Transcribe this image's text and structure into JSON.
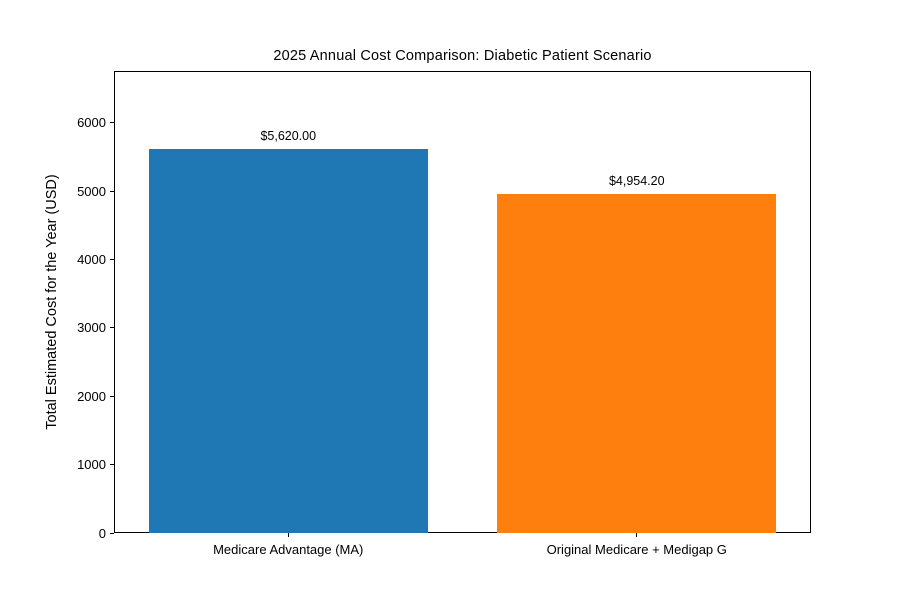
{
  "chart_data": {
    "type": "bar",
    "title": "2025 Annual Cost Comparison: Diabetic Patient Scenario",
    "categories": [
      "Medicare Advantage (MA)",
      "Original Medicare + Medigap G"
    ],
    "values": [
      5620.0,
      4954.2
    ],
    "value_labels": [
      "$5,620.00",
      "$4,954.20"
    ],
    "bar_colors": [
      "#1f77b4",
      "#ff7f0e"
    ],
    "xlabel": "",
    "ylabel": "Total Estimated Cost for the Year (USD)",
    "ylim": [
      0,
      6760
    ],
    "yticks": [
      0,
      1000,
      2000,
      3000,
      4000,
      5000,
      6000
    ],
    "grid": false,
    "legend": "none",
    "bar_width_fraction": 0.8
  }
}
